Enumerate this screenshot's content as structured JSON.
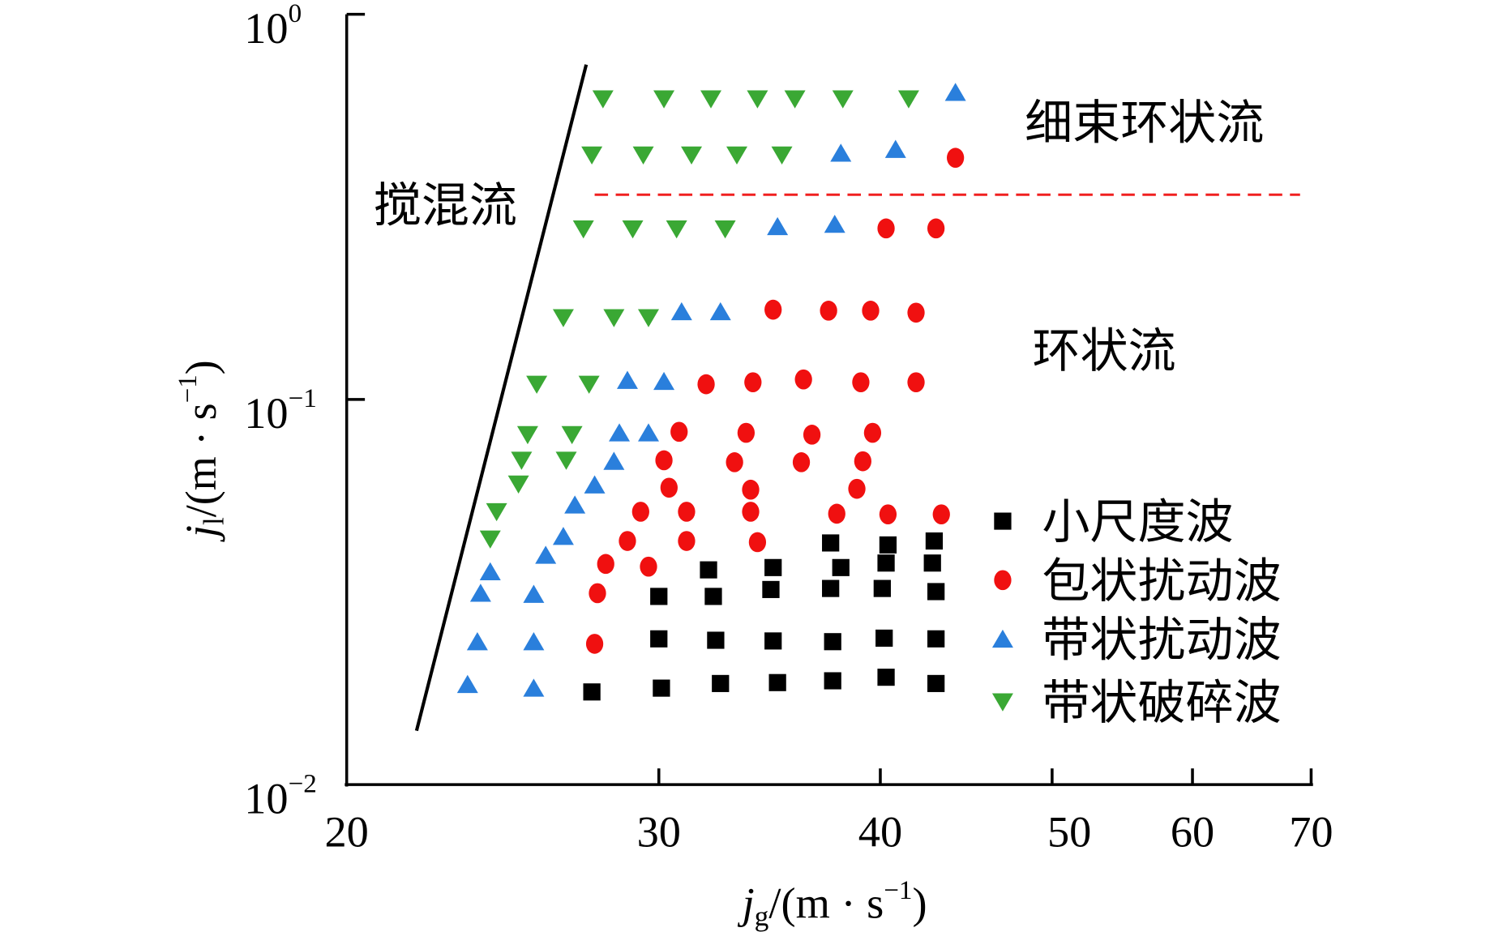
{
  "chart_data": {
    "type": "scatter",
    "title": "",
    "xlabel": {
      "var": "j",
      "sub": "g",
      "unit": "/(m · s",
      "exp": "−1",
      "close": ")"
    },
    "ylabel": {
      "var": "j",
      "sub": "l",
      "unit": "/(m · s",
      "exp": "−1",
      "close": ")"
    },
    "x_scale": "log",
    "y_scale": "log",
    "xlim": [
      20,
      70
    ],
    "ylim": [
      0.01,
      1
    ],
    "grid": false,
    "legend_position": "right",
    "x_ticks": [
      {
        "value": 20,
        "label": "20"
      },
      {
        "value": 30,
        "label": "30"
      },
      {
        "value": 40,
        "label": "40"
      },
      {
        "value": 50,
        "label": "50"
      },
      {
        "value": 60,
        "label": "60"
      },
      {
        "value": 70,
        "label": "70"
      }
    ],
    "y_ticks": [
      {
        "value": 1,
        "base": "10",
        "exp": "0"
      },
      {
        "value": 0.1,
        "base": "10",
        "exp": "−1"
      },
      {
        "value": 0.01,
        "base": "10",
        "exp": "−2"
      }
    ],
    "series": [
      {
        "name": "小尺度波",
        "marker": "square",
        "color": "#000000",
        "points": [
          [
            37.5,
            0.0424
          ],
          [
            40.4,
            0.0419
          ],
          [
            42.9,
            0.0429
          ],
          [
            32.0,
            0.0361
          ],
          [
            34.8,
            0.0366
          ],
          [
            38.0,
            0.0366
          ],
          [
            40.3,
            0.0376
          ],
          [
            42.8,
            0.0376
          ],
          [
            30.0,
            0.0308
          ],
          [
            32.2,
            0.0308
          ],
          [
            34.7,
            0.0321
          ],
          [
            37.5,
            0.0323
          ],
          [
            40.1,
            0.0323
          ],
          [
            43.0,
            0.0317
          ],
          [
            30.0,
            0.0239
          ],
          [
            32.3,
            0.0237
          ],
          [
            34.8,
            0.0236
          ],
          [
            37.6,
            0.0235
          ],
          [
            40.2,
            0.024
          ],
          [
            43.0,
            0.0239
          ],
          [
            27.5,
            0.0174
          ],
          [
            30.1,
            0.0178
          ],
          [
            32.5,
            0.0183
          ],
          [
            35.0,
            0.0184
          ],
          [
            37.6,
            0.0186
          ],
          [
            40.3,
            0.019
          ],
          [
            43.0,
            0.0183
          ]
        ]
      },
      {
        "name": "包状扰动波",
        "marker": "circle",
        "color": "#f01010",
        "points": [
          [
            44.1,
            0.424
          ],
          [
            40.3,
            0.278
          ],
          [
            43.0,
            0.278
          ],
          [
            34.8,
            0.171
          ],
          [
            37.4,
            0.17
          ],
          [
            39.5,
            0.17
          ],
          [
            41.9,
            0.168
          ],
          [
            31.9,
            0.1095
          ],
          [
            33.9,
            0.1108
          ],
          [
            36.2,
            0.1127
          ],
          [
            39.0,
            0.1108
          ],
          [
            41.9,
            0.1108
          ],
          [
            30.8,
            0.0824
          ],
          [
            33.6,
            0.0819
          ],
          [
            36.6,
            0.081
          ],
          [
            39.6,
            0.0819
          ],
          [
            30.2,
            0.0695
          ],
          [
            33.1,
            0.0687
          ],
          [
            36.1,
            0.0687
          ],
          [
            39.1,
            0.0691
          ],
          [
            30.4,
            0.059
          ],
          [
            33.8,
            0.0583
          ],
          [
            38.8,
            0.0586
          ],
          [
            29.3,
            0.0511
          ],
          [
            31.1,
            0.0511
          ],
          [
            33.8,
            0.0511
          ],
          [
            37.8,
            0.0505
          ],
          [
            40.4,
            0.0503
          ],
          [
            43.3,
            0.0503
          ],
          [
            28.8,
            0.0429
          ],
          [
            31.1,
            0.0429
          ],
          [
            34.1,
            0.0426
          ],
          [
            28.0,
            0.0374
          ],
          [
            29.6,
            0.0368
          ],
          [
            27.7,
            0.0314
          ],
          [
            27.6,
            0.0232
          ]
        ]
      },
      {
        "name": "带状扰动波",
        "marker": "triangle-up",
        "color": "#2a7fdc",
        "points": [
          [
            44.1,
            0.627
          ],
          [
            38.0,
            0.436
          ],
          [
            40.8,
            0.446
          ],
          [
            35.0,
            0.281
          ],
          [
            37.7,
            0.285
          ],
          [
            30.9,
            0.169
          ],
          [
            32.5,
            0.169
          ],
          [
            28.8,
            0.1121
          ],
          [
            30.2,
            0.1114
          ],
          [
            28.5,
            0.0819
          ],
          [
            29.6,
            0.0819
          ],
          [
            28.3,
            0.0691
          ],
          [
            27.6,
            0.06
          ],
          [
            26.9,
            0.0532
          ],
          [
            26.5,
            0.0441
          ],
          [
            25.9,
            0.0394
          ],
          [
            24.1,
            0.0357
          ],
          [
            23.8,
            0.0314
          ],
          [
            25.5,
            0.0312
          ],
          [
            23.7,
            0.0235
          ],
          [
            25.5,
            0.0235
          ],
          [
            23.4,
            0.0182
          ],
          [
            25.5,
            0.0178
          ]
        ]
      },
      {
        "name": "带状破碎波",
        "marker": "triangle-down",
        "color": "#3aa834",
        "points": [
          [
            27.9,
            0.603
          ],
          [
            30.2,
            0.603
          ],
          [
            32.1,
            0.603
          ],
          [
            34.1,
            0.603
          ],
          [
            35.8,
            0.603
          ],
          [
            38.1,
            0.603
          ],
          [
            41.5,
            0.603
          ],
          [
            27.5,
            0.431
          ],
          [
            29.4,
            0.431
          ],
          [
            31.3,
            0.431
          ],
          [
            33.2,
            0.431
          ],
          [
            35.2,
            0.431
          ],
          [
            27.2,
            0.277
          ],
          [
            29.0,
            0.277
          ],
          [
            30.7,
            0.277
          ],
          [
            32.7,
            0.277
          ],
          [
            26.5,
            0.163
          ],
          [
            28.3,
            0.163
          ],
          [
            29.6,
            0.163
          ],
          [
            25.6,
            0.1095
          ],
          [
            27.4,
            0.1095
          ],
          [
            25.3,
            0.081
          ],
          [
            26.8,
            0.081
          ],
          [
            25.1,
            0.0695
          ],
          [
            26.6,
            0.0695
          ],
          [
            25.0,
            0.0603
          ],
          [
            24.3,
            0.0511
          ],
          [
            24.1,
            0.0434
          ]
        ]
      }
    ],
    "boundary_lines": [
      {
        "style": "solid",
        "color": "#000000",
        "points": [
          [
            21.9,
            0.0138
          ],
          [
            27.3,
            0.74
          ]
        ]
      },
      {
        "style": "dashed",
        "color": "#f02020",
        "points": [
          [
            27.6,
            0.34
          ],
          [
            69.0,
            0.34
          ]
        ]
      }
    ],
    "annotations": [
      {
        "text": "搅混流"
      },
      {
        "text": "细束环状流"
      },
      {
        "text": "环状流"
      }
    ]
  }
}
